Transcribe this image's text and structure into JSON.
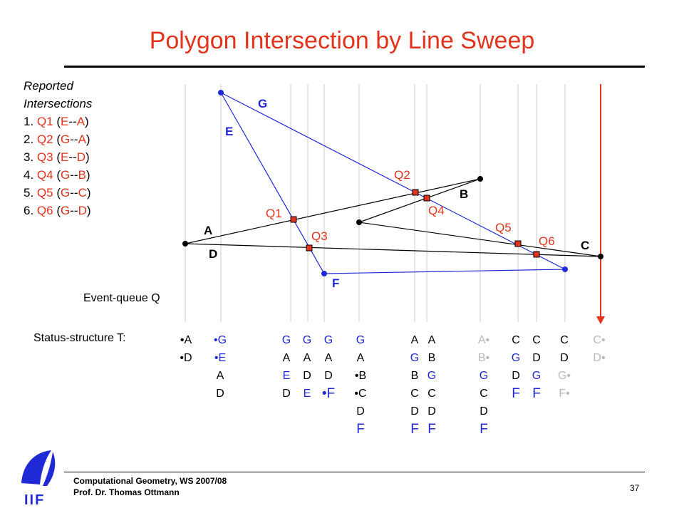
{
  "title": "Polygon Intersection by Line Sweep",
  "reported": {
    "header_line1": "Reported",
    "header_line2": "Intersections",
    "items": [
      {
        "num": "1.",
        "q": "Q1",
        "open": "(",
        "a": "E",
        "sep": "--",
        "b": "A",
        "close": ")"
      },
      {
        "num": "2.",
        "q": "Q2",
        "open": "(",
        "a": "G",
        "sep": "--",
        "b": "A",
        "close": ")"
      },
      {
        "num": "3.",
        "q": "Q3",
        "open": "(",
        "a": "E",
        "sep": "--",
        "b": "D",
        "close": ")"
      },
      {
        "num": "4.",
        "q": "Q4",
        "open": "(",
        "a": "G",
        "sep": "--",
        "b": "B",
        "close": ")"
      },
      {
        "num": "5.",
        "q": "Q5",
        "open": "(",
        "a": "G",
        "sep": "--",
        "b": "C",
        "close": ")"
      },
      {
        "num": "6.",
        "q": "Q6",
        "open": "(",
        "a": "G",
        "sep": "--",
        "b": "D",
        "close": ")"
      }
    ]
  },
  "diagram": {
    "edge_labels": {
      "A": "A",
      "B": "B",
      "C": "C",
      "D": "D",
      "E": "E",
      "F": "F",
      "G": "G"
    },
    "intersections": {
      "Q1": "Q1",
      "Q2": "Q2",
      "Q3": "Q3",
      "Q4": "Q4",
      "Q5": "Q5",
      "Q6": "Q6"
    },
    "colors": {
      "red": "#e2341d",
      "blue": "#1f2ad6",
      "gray": "#b9b9b9",
      "sweep_line": "#cccccc"
    }
  },
  "event_queue_label": "Event-queue Q",
  "status_label": "Status-structure T:",
  "status_columns": [
    [
      {
        "t": "•A"
      },
      {
        "t": "•D"
      }
    ],
    [
      {
        "t": "•G",
        "c": "blue"
      },
      {
        "t": "•E",
        "c": "blue"
      },
      {
        "t": "A"
      },
      {
        "t": "D"
      }
    ],
    [
      {
        "t": "G",
        "c": "blue"
      },
      {
        "t": "A"
      },
      {
        "t": "E",
        "c": "blue"
      },
      {
        "t": "D"
      }
    ],
    [
      {
        "t": "G",
        "c": "blue"
      },
      {
        "t": "A"
      },
      {
        "t": "D"
      },
      {
        "t": "E",
        "c": "blue"
      }
    ],
    [
      {
        "t": "G",
        "c": "blue"
      },
      {
        "t": "A"
      },
      {
        "t": "D"
      },
      {
        "t": "•F",
        "c": "blue",
        "big": true
      }
    ],
    [
      {
        "t": "G",
        "c": "blue"
      },
      {
        "t": "A"
      },
      {
        "t": "•B"
      },
      {
        "t": "•C"
      },
      {
        "t": "D"
      },
      {
        "t": "F",
        "c": "blue",
        "big": true
      }
    ],
    [
      {
        "t": "A"
      },
      {
        "t": "G",
        "c": "blue"
      },
      {
        "t": "B"
      },
      {
        "t": "C"
      },
      {
        "t": "D"
      },
      {
        "t": "F",
        "c": "blue",
        "big": true
      }
    ],
    [
      {
        "t": "A"
      },
      {
        "t": "B"
      },
      {
        "t": "G",
        "c": "blue"
      },
      {
        "t": "C"
      },
      {
        "t": "D"
      },
      {
        "t": "F",
        "c": "blue",
        "big": true
      }
    ],
    [
      {
        "t": "A•",
        "c": "gray"
      },
      {
        "t": "B•",
        "c": "gray"
      },
      {
        "t": "G",
        "c": "blue"
      },
      {
        "t": "C"
      },
      {
        "t": "D"
      },
      {
        "t": "F",
        "c": "blue",
        "big": true
      }
    ],
    [
      {
        "t": "C"
      },
      {
        "t": "G",
        "c": "blue"
      },
      {
        "t": "D"
      },
      {
        "t": "F",
        "c": "blue",
        "big": true
      }
    ],
    [
      {
        "t": "C"
      },
      {
        "t": "D"
      },
      {
        "t": "G",
        "c": "blue"
      },
      {
        "t": "F",
        "c": "blue",
        "big": true
      }
    ],
    [
      {
        "t": "C"
      },
      {
        "t": "D"
      },
      {
        "t": "G•",
        "c": "gray"
      },
      {
        "t": "F•",
        "c": "gray"
      }
    ],
    [
      {
        "t": "C•",
        "c": "gray"
      },
      {
        "t": "D•",
        "c": "gray"
      }
    ]
  ],
  "footer": {
    "line1": "Computational Geometry, WS 2007/08",
    "line2": "Prof. Dr. Thomas Ottmann",
    "page": "37",
    "logo_text": "IIF"
  }
}
